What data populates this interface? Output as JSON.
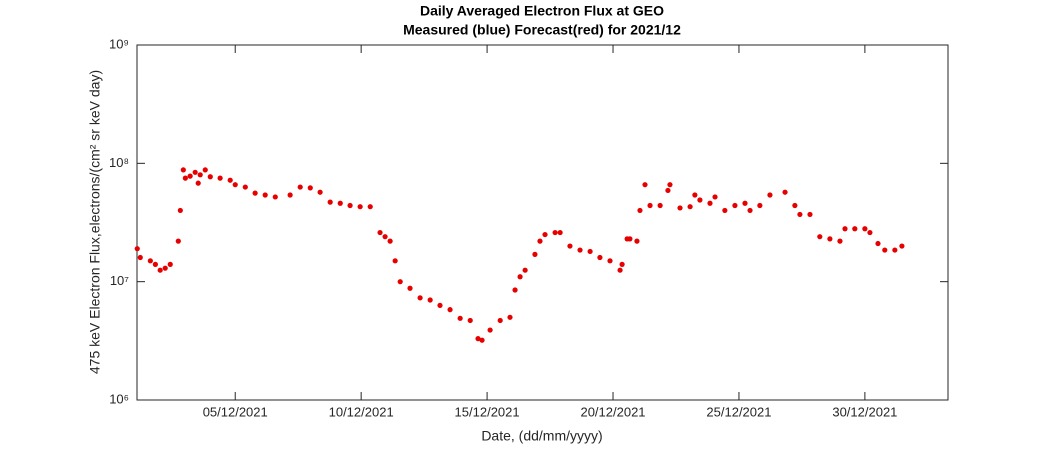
{
  "chart_data": {
    "type": "scatter",
    "title": "Daily Averaged Electron Flux at GEO",
    "subtitle": "Measured (blue) Forecast(red) for 2021/12",
    "xlabel": "Date, (dd/mm/yyyy)",
    "ylabel": "475 keV Electron Flux,electrons/(cm² sr keV day)",
    "color": "#e60000",
    "yscale": "log",
    "xlim": [
      1.1,
      33.3
    ],
    "ylim": [
      1000000,
      1000000000
    ],
    "xticks": [
      {
        "value": 5,
        "label": "05/12/2021"
      },
      {
        "value": 10,
        "label": "10/12/2021"
      },
      {
        "value": 15,
        "label": "15/12/2021"
      },
      {
        "value": 20,
        "label": "20/12/2021"
      },
      {
        "value": 25,
        "label": "25/12/2021"
      },
      {
        "value": 30,
        "label": "30/12/2021"
      }
    ],
    "yticks": [
      {
        "value": 1000000,
        "label": "10⁶"
      },
      {
        "value": 10000000,
        "label": "10⁷"
      },
      {
        "value": 100000000,
        "label": "10⁸"
      },
      {
        "value": 1000000000,
        "label": "10⁹"
      }
    ],
    "x": [
      1.11,
      1.23,
      1.63,
      1.83,
      2.02,
      2.22,
      2.42,
      2.74,
      2.82,
      2.94,
      3.02,
      3.21,
      3.41,
      3.53,
      3.61,
      3.81,
      4.01,
      4.4,
      4.8,
      5.0,
      5.4,
      5.79,
      6.19,
      6.59,
      7.18,
      7.58,
      7.98,
      8.37,
      8.77,
      9.17,
      9.56,
      9.96,
      10.36,
      10.75,
      10.95,
      11.15,
      11.35,
      11.55,
      11.94,
      12.34,
      12.74,
      13.13,
      13.53,
      13.93,
      14.33,
      14.64,
      14.8,
      15.12,
      15.52,
      15.91,
      16.11,
      16.31,
      16.51,
      16.9,
      17.1,
      17.3,
      17.7,
      17.9,
      18.29,
      18.69,
      19.09,
      19.48,
      19.88,
      20.28,
      20.36,
      20.56,
      20.67,
      20.95,
      21.07,
      21.27,
      21.47,
      21.87,
      22.18,
      22.26,
      22.66,
      23.06,
      23.25,
      23.45,
      23.85,
      24.05,
      24.44,
      24.84,
      25.24,
      25.44,
      25.83,
      26.23,
      26.83,
      27.22,
      27.42,
      27.82,
      28.21,
      28.61,
      29.01,
      29.21,
      29.6,
      30.0,
      30.2,
      30.52,
      30.79,
      31.19,
      31.47
    ],
    "values": [
      19000000.0,
      16000000.0,
      15000000.0,
      14000000.0,
      12500000.0,
      13000000.0,
      14000000.0,
      22000000.0,
      40000000.0,
      88000000.0,
      75000000.0,
      78000000.0,
      84000000.0,
      68000000.0,
      80000000.0,
      88000000.0,
      77000000.0,
      75000000.0,
      72000000.0,
      66000000.0,
      63000000.0,
      56000000.0,
      54000000.0,
      52000000.0,
      54000000.0,
      63000000.0,
      62000000.0,
      57000000.0,
      47000000.0,
      46000000.0,
      44000000.0,
      43000000.0,
      43000000.0,
      26000000.0,
      24000000.0,
      22000000.0,
      15000000.0,
      10000000.0,
      8800000.0,
      7300000.0,
      7000000.0,
      6300000.0,
      5800000.0,
      4900000.0,
      4700000.0,
      3300000.0,
      3200000.0,
      3900000.0,
      4700000.0,
      5000000.0,
      8500000.0,
      11000000.0,
      12500000.0,
      17000000.0,
      22000000.0,
      25000000.0,
      26000000.0,
      26000000.0,
      20000000.0,
      18500000.0,
      18000000.0,
      16000000.0,
      15000000.0,
      12500000.0,
      14000000.0,
      23000000.0,
      23000000.0,
      22000000.0,
      40000000.0,
      66000000.0,
      44000000.0,
      44000000.0,
      59000000.0,
      66000000.0,
      42000000.0,
      43000000.0,
      54000000.0,
      49000000.0,
      46000000.0,
      52000000.0,
      40000000.0,
      44000000.0,
      46000000.0,
      40000000.0,
      44000000.0,
      54000000.0,
      57000000.0,
      44000000.0,
      37000000.0,
      37000000.0,
      24000000.0,
      23000000.0,
      22000000.0,
      28000000.0,
      28000000.0,
      28000000.0,
      26000000.0,
      21000000.0,
      18500000.0,
      18500000.0,
      20000000.0
    ]
  }
}
